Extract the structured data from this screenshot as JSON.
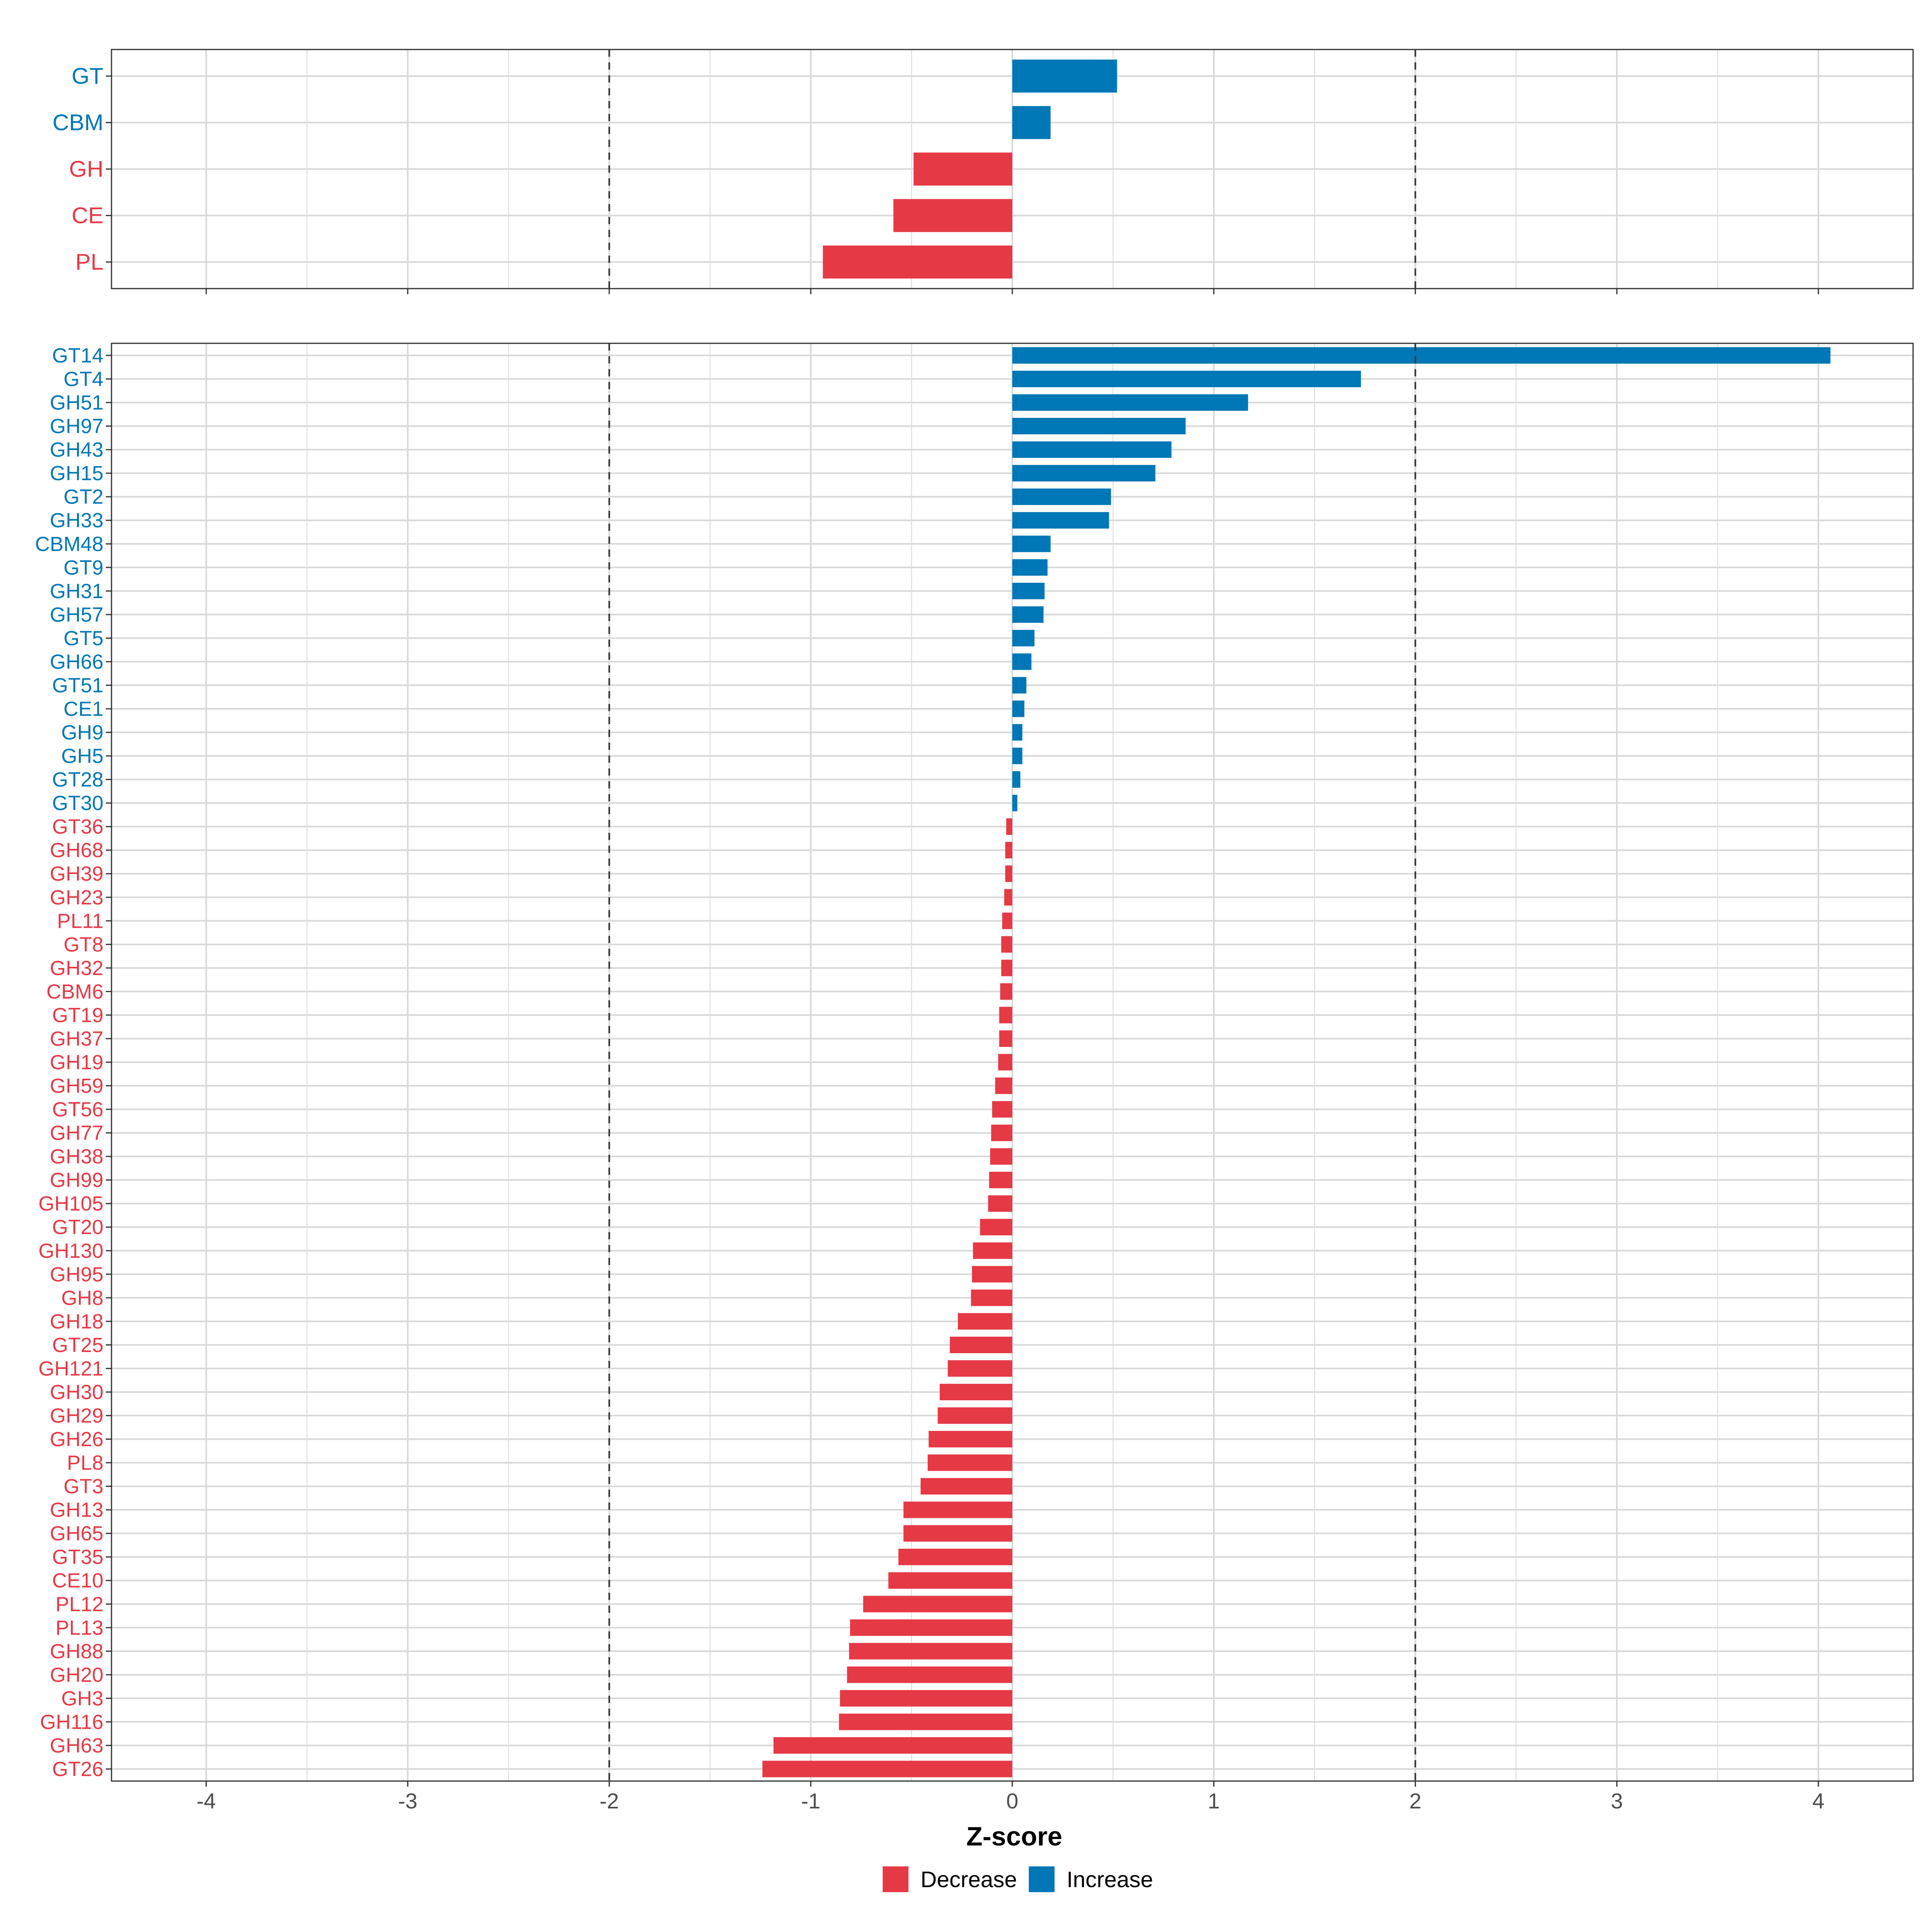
{
  "colors": {
    "decrease": "#E63946",
    "increase": "#0077B6",
    "grid": "#D9D9D9",
    "frame": "#333333",
    "refline": "#333333",
    "tick_text": "#4D4D4D"
  },
  "chart_data": [
    {
      "type": "bar",
      "orientation": "horizontal",
      "panel": "class-level",
      "categories": [
        "GT",
        "CBM",
        "GH",
        "CE",
        "PL"
      ],
      "values": [
        0.52,
        0.19,
        -0.49,
        -0.59,
        -0.94
      ],
      "xlim": [
        -4.47,
        4.47
      ],
      "reference_lines": [
        -2,
        2
      ]
    },
    {
      "type": "bar",
      "orientation": "horizontal",
      "panel": "family-level",
      "categories": [
        "GT14",
        "GT4",
        "GH51",
        "GH97",
        "GH43",
        "GH15",
        "GT2",
        "GH33",
        "CBM48",
        "GT9",
        "GH31",
        "GH57",
        "GT5",
        "GH66",
        "GT51",
        "CE1",
        "GH9",
        "GH5",
        "GT28",
        "GT30",
        "GT36",
        "GH68",
        "GH39",
        "GH23",
        "PL11",
        "GT8",
        "GH32",
        "CBM6",
        "GT19",
        "GH37",
        "GH19",
        "GH59",
        "GT56",
        "GH77",
        "GH38",
        "GH99",
        "GH105",
        "GT20",
        "GH130",
        "GH95",
        "GH8",
        "GH18",
        "GT25",
        "GH121",
        "GH30",
        "GH29",
        "GH26",
        "PL8",
        "GT3",
        "GH13",
        "GH65",
        "GT35",
        "CE10",
        "PL12",
        "PL13",
        "GH88",
        "GH20",
        "GH3",
        "GH116",
        "GH63",
        "GT26"
      ],
      "values": [
        4.06,
        1.73,
        1.17,
        0.86,
        0.79,
        0.71,
        0.49,
        0.48,
        0.19,
        0.175,
        0.16,
        0.155,
        0.11,
        0.095,
        0.07,
        0.06,
        0.05,
        0.05,
        0.04,
        0.025,
        -0.03,
        -0.035,
        -0.035,
        -0.04,
        -0.05,
        -0.055,
        -0.055,
        -0.06,
        -0.065,
        -0.065,
        -0.07,
        -0.085,
        -0.1,
        -0.105,
        -0.11,
        -0.115,
        -0.12,
        -0.16,
        -0.195,
        -0.2,
        -0.205,
        -0.27,
        -0.31,
        -0.32,
        -0.36,
        -0.37,
        -0.415,
        -0.42,
        -0.455,
        -0.54,
        -0.54,
        -0.565,
        -0.615,
        -0.74,
        -0.805,
        -0.81,
        -0.82,
        -0.855,
        -0.86,
        -1.185,
        -1.24
      ],
      "xlim": [
        -4.47,
        4.47
      ],
      "xticks": [
        "-4",
        "-3",
        "-2",
        "-1",
        "0",
        "1",
        "2",
        "3",
        "4"
      ],
      "xtick_values": [
        -4,
        -3,
        -2,
        -1,
        0,
        1,
        2,
        3,
        4
      ],
      "xlabel": "Z-score",
      "reference_lines": [
        -2,
        2
      ]
    }
  ],
  "legend": {
    "decrease_label": "Decrease",
    "increase_label": "Increase"
  }
}
